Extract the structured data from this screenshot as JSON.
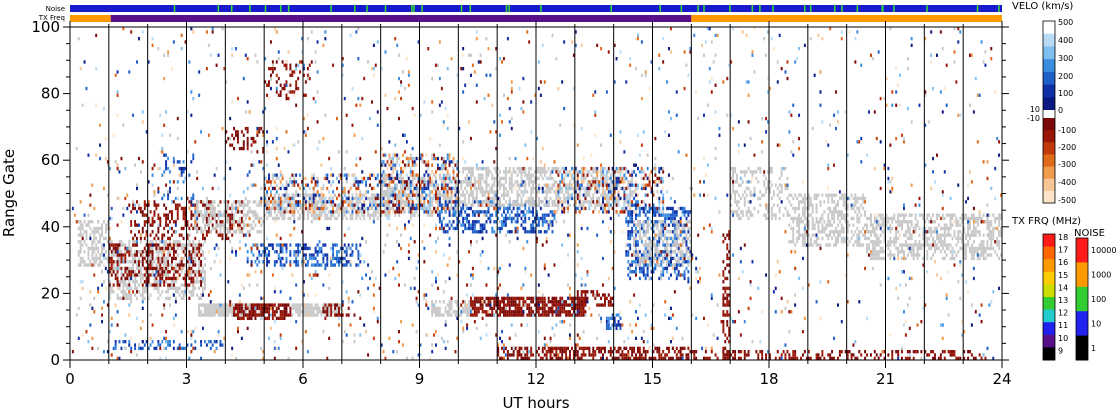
{
  "chart_data": {
    "type": "heatmap",
    "xlabel": "UT hours",
    "ylabel": "Range Gate",
    "xlim": [
      0,
      24
    ],
    "ylim": [
      0,
      100
    ],
    "xticks": [
      "0",
      "3",
      "6",
      "9",
      "12",
      "15",
      "18",
      "21",
      "24"
    ],
    "yticks": [
      "0",
      "20",
      "40",
      "60",
      "80",
      "100"
    ],
    "grid": "vertical lines at each UT hour",
    "status_bars": {
      "noise_label": "Noise",
      "txfreq_label": "TX Freq",
      "noise_color": "#1a1acd",
      "noise_spike_color": "#33dd33",
      "txfreq_segments": [
        {
          "start": 0,
          "end": 1.05,
          "color": "#ff9900"
        },
        {
          "start": 1.05,
          "end": 16.0,
          "color": "#55108a"
        },
        {
          "start": 16.0,
          "end": 24,
          "color": "#ff9900"
        }
      ]
    },
    "velocity_colorbar": {
      "title": "VELO (km/s)",
      "positive_labels": [
        "500",
        "400",
        "300",
        "200",
        "100",
        "0"
      ],
      "negative_labels": [
        "-100",
        "-200",
        "-300",
        "-400",
        "-500"
      ],
      "near_zero_labels": [
        "10",
        "-10"
      ],
      "positive_colors": [
        "#ffffff",
        "#b9dcf6",
        "#7fbfef",
        "#3b8de0",
        "#1f5fc8",
        "#1030a8",
        "#0a1a80"
      ],
      "negative_colors": [
        "#7a0a0a",
        "#9a1606",
        "#c23a0c",
        "#e06a1a",
        "#f09a4c",
        "#f7c596",
        "#fde3c8"
      ],
      "ground_scatter_color": "#c8c8c8"
    },
    "txfreq_colorbar": {
      "title": "TX FRQ (MHz)",
      "labels": [
        "18",
        "17",
        "16",
        "15",
        "14",
        "13",
        "12",
        "11",
        "10",
        "9"
      ],
      "colors": [
        "#ff1a1a",
        "#ff6600",
        "#ff9900",
        "#ffcc00",
        "#ccdd00",
        "#33cc33",
        "#22cccc",
        "#2222ee",
        "#55108a",
        "#000000"
      ]
    },
    "noise_colorbar": {
      "title": "NOISE",
      "labels": [
        "10000",
        "1000",
        "100",
        "10",
        "1"
      ],
      "colors": [
        "#ff1a1a",
        "#ff9900",
        "#33cc33",
        "#2222ee",
        "#000000"
      ]
    },
    "features": [
      {
        "kind": "ground",
        "x": [
          0.2,
          1.0
        ],
        "y": [
          28,
          42
        ],
        "density": 0.55
      },
      {
        "kind": "ground",
        "x": [
          1.0,
          3.5
        ],
        "y": [
          18,
          36
        ],
        "density": 0.5
      },
      {
        "kind": "neg",
        "x": [
          1.0,
          3.4
        ],
        "y": [
          22,
          35
        ],
        "density": 0.35
      },
      {
        "kind": "neg",
        "x": [
          1.5,
          4.5
        ],
        "y": [
          36,
          48
        ],
        "density": 0.35
      },
      {
        "kind": "pos",
        "x": [
          2.3,
          3.2
        ],
        "y": [
          48,
          62
        ],
        "density": 0.15
      },
      {
        "kind": "ground",
        "x": [
          3.2,
          5.0
        ],
        "y": [
          38,
          48
        ],
        "density": 0.5
      },
      {
        "kind": "ground",
        "x": [
          5.0,
          8.0
        ],
        "y": [
          42,
          50
        ],
        "density": 0.6
      },
      {
        "kind": "mixed",
        "x": [
          5.0,
          8.5
        ],
        "y": [
          44,
          56
        ],
        "density": 0.35
      },
      {
        "kind": "ground",
        "x": [
          8.0,
          10.0
        ],
        "y": [
          43,
          56
        ],
        "density": 0.5
      },
      {
        "kind": "mixed",
        "x": [
          8.0,
          10.0
        ],
        "y": [
          44,
          62
        ],
        "density": 0.4
      },
      {
        "kind": "pos",
        "x": [
          9.5,
          12.5
        ],
        "y": [
          38,
          48
        ],
        "density": 0.5
      },
      {
        "kind": "ground",
        "x": [
          10.0,
          14.5
        ],
        "y": [
          46,
          58
        ],
        "density": 0.55
      },
      {
        "kind": "mixed",
        "x": [
          12.5,
          15.3
        ],
        "y": [
          44,
          58
        ],
        "density": 0.4
      },
      {
        "kind": "pos",
        "x": [
          14.3,
          16.0
        ],
        "y": [
          24,
          46
        ],
        "density": 0.45
      },
      {
        "kind": "ground",
        "x": [
          14.5,
          16.0
        ],
        "y": [
          28,
          42
        ],
        "density": 0.45
      },
      {
        "kind": "neg",
        "x": [
          4.0,
          5.0
        ],
        "y": [
          62,
          70
        ],
        "density": 0.3
      },
      {
        "kind": "neg",
        "x": [
          5.0,
          6.3
        ],
        "y": [
          78,
          90
        ],
        "density": 0.2
      },
      {
        "kind": "pos",
        "x": [
          4.5,
          7.5
        ],
        "y": [
          28,
          35
        ],
        "density": 0.45
      },
      {
        "kind": "ground",
        "x": [
          3.3,
          5.0
        ],
        "y": [
          13,
          17
        ],
        "density": 0.9
      },
      {
        "kind": "neg",
        "x": [
          4.2,
          5.7
        ],
        "y": [
          12,
          17
        ],
        "density": 0.7
      },
      {
        "kind": "ground",
        "x": [
          5.7,
          7.0
        ],
        "y": [
          13,
          17
        ],
        "density": 0.8
      },
      {
        "kind": "neg",
        "x": [
          6.5,
          7.2
        ],
        "y": [
          13,
          17
        ],
        "density": 0.5
      },
      {
        "kind": "ground",
        "x": [
          9.3,
          10.5
        ],
        "y": [
          13,
          18
        ],
        "density": 0.7
      },
      {
        "kind": "neg",
        "x": [
          10.3,
          13.3
        ],
        "y": [
          13,
          19
        ],
        "density": 0.75
      },
      {
        "kind": "neg",
        "x": [
          13.0,
          14.0
        ],
        "y": [
          16,
          21
        ],
        "density": 0.45
      },
      {
        "kind": "pos",
        "x": [
          13.8,
          14.2
        ],
        "y": [
          9,
          14
        ],
        "density": 0.6
      },
      {
        "kind": "neg",
        "x": [
          11.0,
          16.0
        ],
        "y": [
          0,
          4
        ],
        "density": 0.55
      },
      {
        "kind": "neg",
        "x": [
          16.0,
          23.5
        ],
        "y": [
          0,
          3
        ],
        "density": 0.3
      },
      {
        "kind": "pos",
        "x": [
          1.0,
          4.0
        ],
        "y": [
          3,
          6
        ],
        "density": 0.3
      },
      {
        "kind": "ground",
        "x": [
          17.0,
          18.5
        ],
        "y": [
          42,
          58
        ],
        "density": 0.3
      },
      {
        "kind": "ground",
        "x": [
          18.5,
          20.5
        ],
        "y": [
          34,
          50
        ],
        "density": 0.45
      },
      {
        "kind": "ground",
        "x": [
          20.5,
          24.0
        ],
        "y": [
          30,
          44
        ],
        "density": 0.55
      },
      {
        "kind": "mixed",
        "x": [
          16.0,
          24.0
        ],
        "y": [
          0,
          100
        ],
        "density": 0.025
      },
      {
        "kind": "mixed",
        "x": [
          0.0,
          16.0
        ],
        "y": [
          60,
          100
        ],
        "density": 0.03
      },
      {
        "kind": "mixed",
        "x": [
          0.0,
          16.0
        ],
        "y": [
          0,
          60
        ],
        "density": 0.05
      },
      {
        "kind": "neg",
        "x": [
          16.8,
          17.0
        ],
        "y": [
          0,
          40
        ],
        "density": 0.5
      }
    ]
  }
}
